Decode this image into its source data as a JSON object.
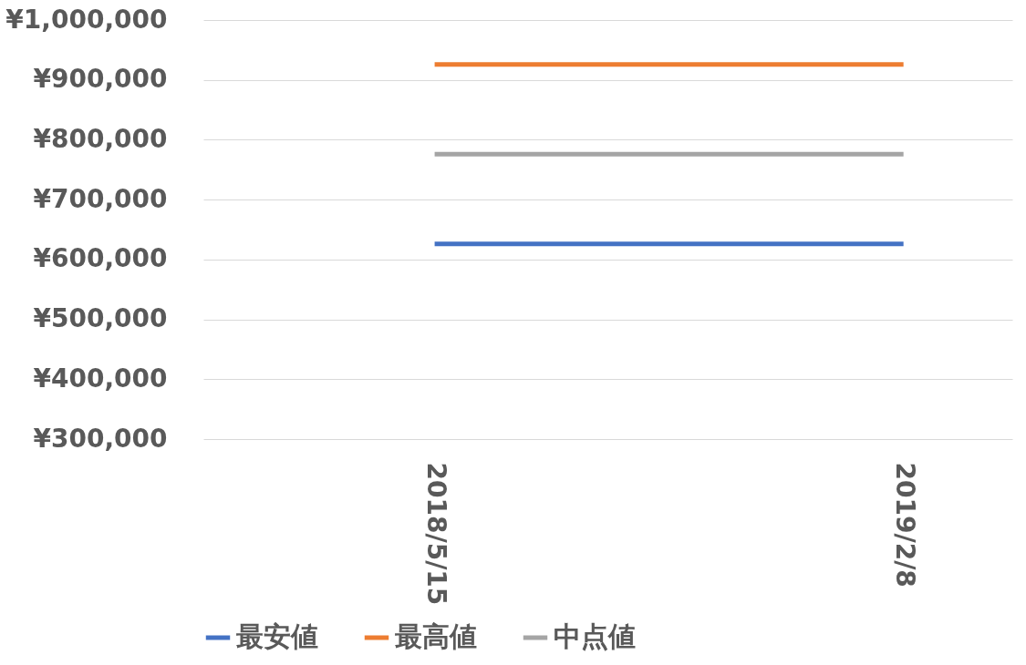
{
  "chart_data": {
    "type": "line",
    "categories": [
      "2018/5/15",
      "2019/2/8"
    ],
    "series": [
      {
        "name": "最安値",
        "color": "#4472c4",
        "values": [
          626000,
          626000
        ]
      },
      {
        "name": "最高値",
        "color": "#ed7d31",
        "values": [
          926000,
          926000
        ]
      },
      {
        "name": "中点値",
        "color": "#a5a5a5",
        "values": [
          776000,
          776000
        ]
      }
    ],
    "ylim": [
      300000,
      1000000
    ],
    "yticks": [
      {
        "value": 300000,
        "label": "¥300,000"
      },
      {
        "value": 400000,
        "label": "¥400,000"
      },
      {
        "value": 500000,
        "label": "¥500,000"
      },
      {
        "value": 600000,
        "label": "¥600,000"
      },
      {
        "value": 700000,
        "label": "¥700,000"
      },
      {
        "value": 800000,
        "label": "¥800,000"
      },
      {
        "value": 900000,
        "label": "¥900,000"
      },
      {
        "value": 1000000,
        "label": "¥1,000,000"
      }
    ],
    "grid": "y",
    "legend": "bottom",
    "marker": "none",
    "line_style": "solid"
  }
}
